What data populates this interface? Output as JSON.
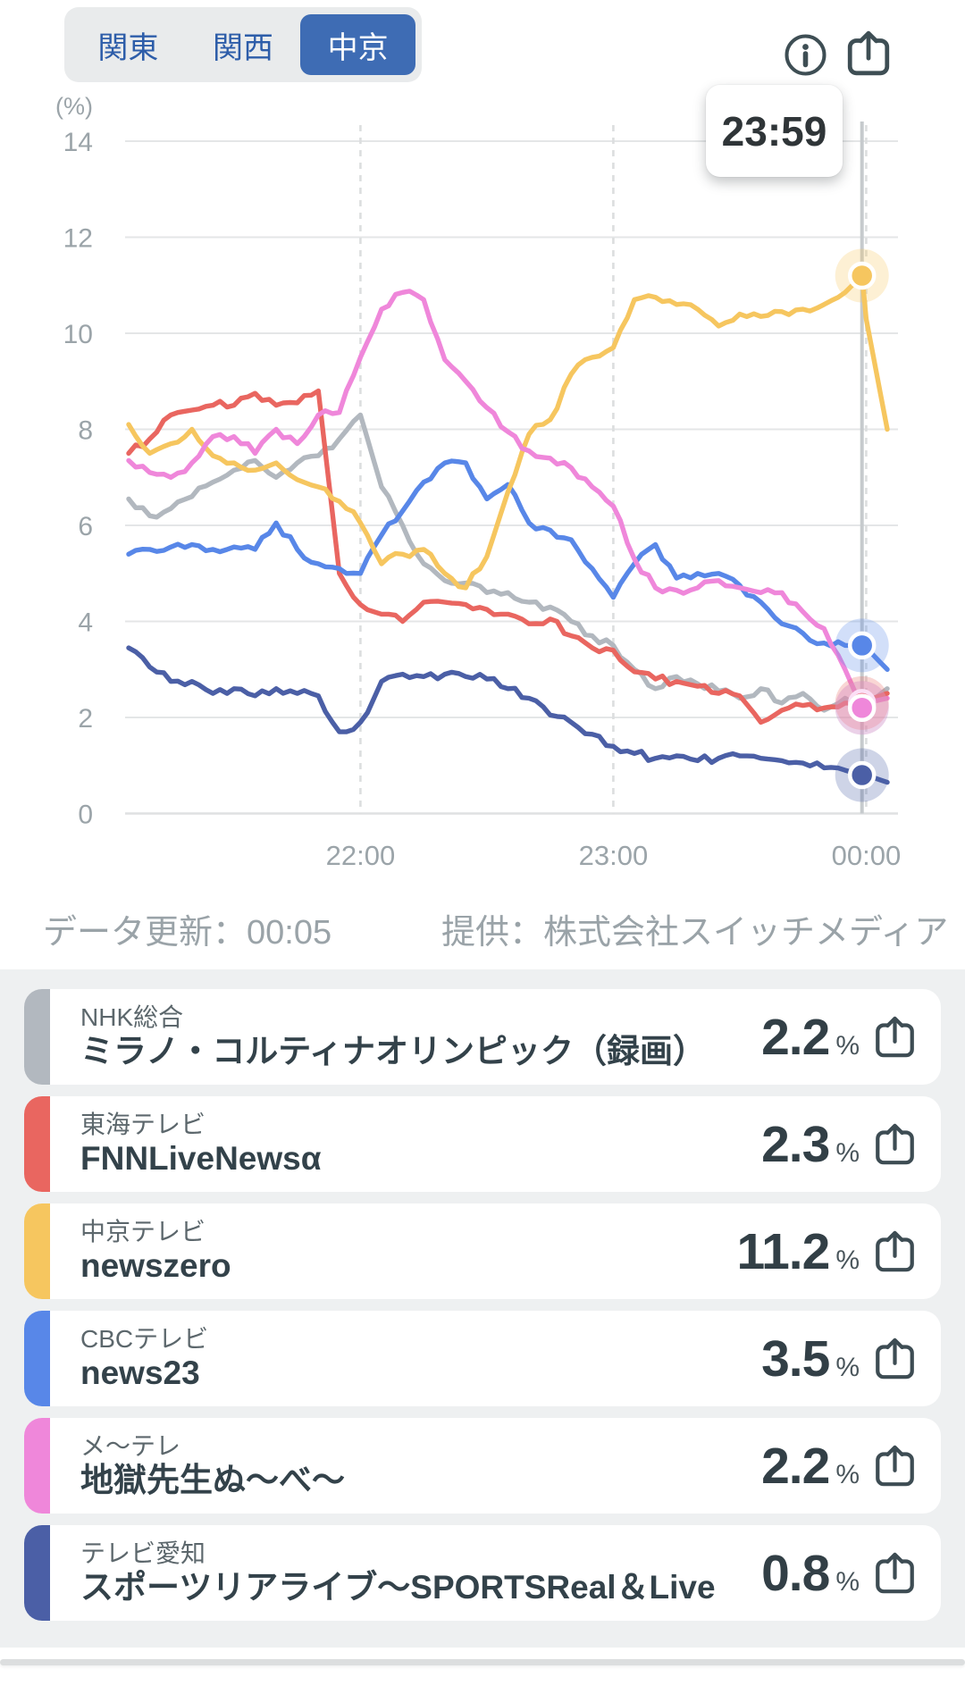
{
  "tabs": {
    "items": [
      {
        "label": "関東",
        "selected": false
      },
      {
        "label": "関西",
        "selected": false
      },
      {
        "label": "中京",
        "selected": true
      }
    ],
    "selected_bg": "#3e6cb4",
    "text_color": "#2d5da9"
  },
  "tooltip": {
    "label": "23:59"
  },
  "footer": {
    "updated": "データ更新：00:05",
    "provider": "提供：株式会社スイッチメディア"
  },
  "legend": {
    "percent_label": "%"
  },
  "chart_data": {
    "type": "line",
    "unit_label": "(%)",
    "ylim": [
      0,
      14
    ],
    "y_ticks": [
      0,
      2,
      4,
      6,
      8,
      10,
      12,
      14
    ],
    "x_ticks": [
      "22:00",
      "23:00",
      "00:00"
    ],
    "grid": true,
    "cursor_time": "23:59",
    "times": [
      "21:05",
      "21:10",
      "21:15",
      "21:20",
      "21:25",
      "21:30",
      "21:35",
      "21:40",
      "21:45",
      "21:50",
      "21:55",
      "22:00",
      "22:05",
      "22:10",
      "22:15",
      "22:20",
      "22:25",
      "22:30",
      "22:35",
      "22:40",
      "22:45",
      "22:50",
      "22:55",
      "23:00",
      "23:05",
      "23:10",
      "23:15",
      "23:20",
      "23:25",
      "23:30",
      "23:35",
      "23:40",
      "23:45",
      "23:50",
      "23:55",
      "23:59",
      "00:00",
      "00:05"
    ],
    "series": [
      {
        "name": "NHK総合",
        "program": "ミラノ・コルティナオリンピック（録画）",
        "color": "#b2b8bf",
        "value_at_cursor": 2.2,
        "values": [
          6.55,
          6.2,
          6.35,
          6.6,
          6.9,
          7.15,
          7.35,
          7.0,
          7.3,
          7.45,
          7.8,
          8.3,
          6.8,
          6.0,
          5.2,
          4.85,
          4.8,
          4.6,
          4.6,
          4.4,
          4.3,
          4.0,
          3.7,
          3.5,
          3.0,
          2.6,
          2.85,
          2.7,
          2.55,
          2.4,
          2.6,
          2.3,
          2.5,
          2.15,
          2.4,
          2.2,
          2.25,
          2.6
        ]
      },
      {
        "name": "東海テレビ",
        "program": "FNNLiveNewsα",
        "color": "#e96660",
        "value_at_cursor": 2.3,
        "values": [
          7.5,
          7.8,
          8.3,
          8.4,
          8.5,
          8.5,
          8.75,
          8.5,
          8.55,
          8.8,
          5.0,
          4.35,
          4.15,
          4.0,
          4.4,
          4.4,
          4.35,
          4.25,
          4.15,
          3.95,
          4.05,
          3.7,
          3.45,
          3.4,
          2.95,
          2.8,
          2.75,
          2.65,
          2.5,
          2.45,
          1.9,
          2.15,
          2.25,
          2.2,
          2.3,
          2.3,
          2.35,
          2.5
        ]
      },
      {
        "name": "中京テレビ",
        "program": "newszero",
        "color": "#f6c65f",
        "value_at_cursor": 11.2,
        "values": [
          8.1,
          7.5,
          7.7,
          8.0,
          7.45,
          7.3,
          7.15,
          7.3,
          6.95,
          6.8,
          6.5,
          6.05,
          5.2,
          5.4,
          5.5,
          5.0,
          4.7,
          5.35,
          6.7,
          7.9,
          8.2,
          9.15,
          9.5,
          9.7,
          10.7,
          10.75,
          10.6,
          10.5,
          10.15,
          10.4,
          10.35,
          10.45,
          10.5,
          10.6,
          10.85,
          11.2,
          10.3,
          8.0
        ]
      },
      {
        "name": "CBCテレビ",
        "program": "news23",
        "color": "#5887e8",
        "value_at_cursor": 3.5,
        "values": [
          5.4,
          5.5,
          5.55,
          5.6,
          5.5,
          5.55,
          5.5,
          6.05,
          5.5,
          5.2,
          5.1,
          5.0,
          5.8,
          6.3,
          6.9,
          7.3,
          7.3,
          6.55,
          6.85,
          6.05,
          5.9,
          5.7,
          5.1,
          4.5,
          5.2,
          5.6,
          4.9,
          5.0,
          5.0,
          4.75,
          4.4,
          3.95,
          3.75,
          3.55,
          3.5,
          3.5,
          3.45,
          3.0
        ]
      },
      {
        "name": "メ〜テレ",
        "program": "地獄先生ぬ〜べ〜",
        "color": "#ef87da",
        "value_at_cursor": 2.2,
        "values": [
          7.35,
          7.1,
          7.0,
          7.3,
          7.85,
          7.85,
          7.5,
          8.0,
          7.7,
          8.3,
          8.35,
          9.5,
          10.5,
          10.85,
          10.7,
          9.45,
          9.0,
          8.45,
          7.95,
          7.55,
          7.4,
          7.2,
          6.8,
          6.4,
          5.3,
          4.7,
          4.65,
          4.7,
          4.85,
          4.7,
          4.6,
          4.6,
          4.2,
          3.85,
          3.0,
          2.2,
          2.3,
          2.4
        ]
      },
      {
        "name": "テレビ愛知",
        "program": "スポーツリアライブ〜SPORTSReal＆Live",
        "color": "#4b5fa6",
        "value_at_cursor": 0.8,
        "values": [
          3.45,
          3.05,
          2.75,
          2.75,
          2.5,
          2.6,
          2.45,
          2.6,
          2.5,
          2.45,
          1.7,
          1.9,
          2.75,
          2.9,
          2.85,
          2.9,
          2.85,
          2.8,
          2.6,
          2.4,
          2.05,
          1.9,
          1.65,
          1.4,
          1.25,
          1.15,
          1.2,
          1.1,
          1.15,
          1.2,
          1.15,
          1.1,
          1.05,
          0.95,
          0.9,
          0.8,
          0.8,
          0.65
        ]
      }
    ],
    "colors": {
      "grid": "#e4e6e7",
      "grid_dashed": "#dcdedf",
      "cursor": "#c6cacd",
      "axis_text": "#9ba4a9",
      "icon": "#3e4e54"
    }
  }
}
